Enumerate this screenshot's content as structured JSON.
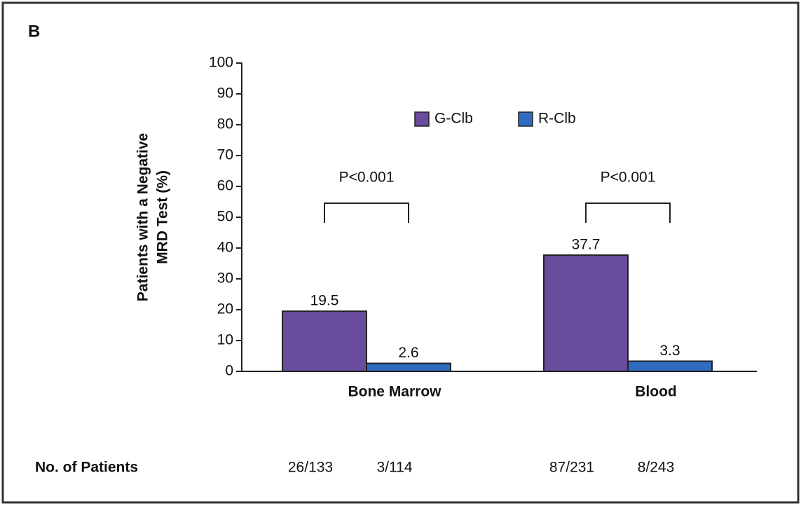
{
  "chart_data": {
    "type": "bar",
    "panel_label": "B",
    "ylabel": [
      "Patients with a Negative",
      "MRD Test (%)"
    ],
    "categories": [
      "Bone Marrow",
      "Blood"
    ],
    "series": [
      {
        "name": "G-Clb",
        "color": "#6a4c9c",
        "values": [
          19.5,
          37.7
        ],
        "counts": [
          "26/133",
          "87/231"
        ]
      },
      {
        "name": "R-Clb",
        "color": "#2f6cc0",
        "values": [
          2.6,
          3.3
        ],
        "counts": [
          "3/114",
          "8/243"
        ]
      }
    ],
    "annotations": [
      "P<0.001",
      "P<0.001"
    ],
    "counts_label": "No. of Patients",
    "ylim": [
      0,
      100
    ],
    "yticks": [
      0,
      10,
      20,
      30,
      40,
      50,
      60,
      70,
      80,
      90,
      100
    ],
    "grid": false
  }
}
